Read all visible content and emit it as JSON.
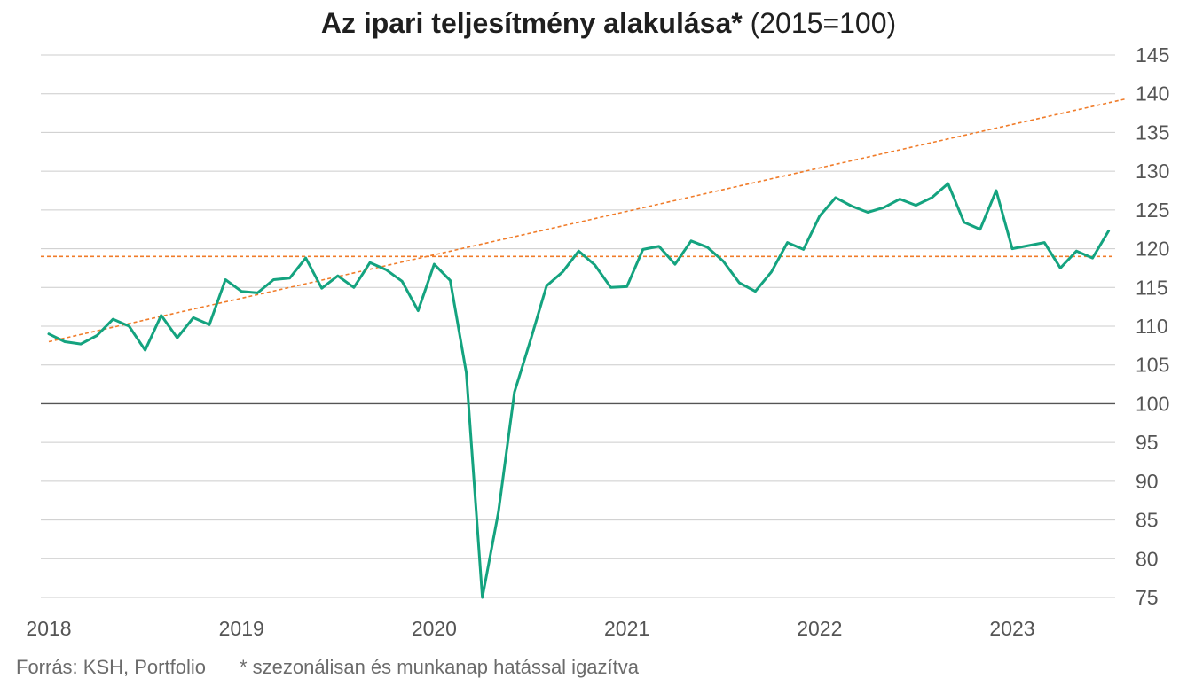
{
  "title": {
    "bold": "Az ipari teljesítmény alakulása*",
    "normal": "(2015=100)"
  },
  "footer": {
    "source": "Forrás: KSH, Portfolio",
    "note": "* szezonálisan és munkanap hatással igazítva"
  },
  "colors": {
    "series": "#14a37f",
    "reference_line": "#f07c2a",
    "grid": "#cccccc",
    "baseline": "#555555",
    "text": "#555555"
  },
  "chart_data": {
    "type": "line",
    "title": "Az ipari teljesítmény alakulása* (2015=100)",
    "ylim": [
      75,
      145
    ],
    "y_ticks": [
      145,
      140,
      135,
      130,
      125,
      120,
      115,
      110,
      105,
      100,
      95,
      90,
      85,
      80,
      75
    ],
    "y_axis_side": "right",
    "x_tick_labels": [
      "2018",
      "2019",
      "2020",
      "2021",
      "2022",
      "2023"
    ],
    "grid": true,
    "baseline_value": 100,
    "series": [
      {
        "x": [
          "2018-01",
          "2018-02",
          "2018-03",
          "2018-04",
          "2018-05",
          "2018-06",
          "2018-07",
          "2018-08",
          "2018-09",
          "2018-10",
          "2018-11",
          "2018-12",
          "2019-01",
          "2019-02",
          "2019-03",
          "2019-04",
          "2019-05",
          "2019-06",
          "2019-07",
          "2019-08",
          "2019-09",
          "2019-10",
          "2019-11",
          "2019-12",
          "2020-01",
          "2020-02",
          "2020-03",
          "2020-04",
          "2020-05",
          "2020-06",
          "2020-07",
          "2020-08",
          "2020-09",
          "2020-10",
          "2020-11",
          "2020-12",
          "2021-01",
          "2021-02",
          "2021-03",
          "2021-04",
          "2021-05",
          "2021-06",
          "2021-07",
          "2021-08",
          "2021-09",
          "2021-10",
          "2021-11",
          "2021-12",
          "2022-01",
          "2022-02",
          "2022-03",
          "2022-04",
          "2022-05",
          "2022-06",
          "2022-07",
          "2022-08",
          "2022-09",
          "2022-10",
          "2022-11",
          "2022-12",
          "2023-01",
          "2023-02",
          "2023-03",
          "2023-04",
          "2023-05",
          "2023-06",
          "2023-07"
        ],
        "values": [
          109.0,
          108.0,
          107.7,
          108.8,
          110.9,
          110.0,
          106.9,
          111.4,
          108.5,
          111.1,
          110.2,
          116.0,
          114.5,
          114.3,
          116.0,
          116.2,
          118.8,
          114.9,
          116.5,
          115.0,
          118.2,
          117.3,
          115.8,
          112.0,
          118.0,
          115.9,
          104.0,
          75.0,
          86.0,
          101.5,
          108.2,
          115.2,
          117.0,
          119.7,
          117.9,
          115.0,
          115.1,
          119.9,
          120.3,
          118.0,
          121.0,
          120.2,
          118.4,
          115.6,
          114.5,
          117.0,
          120.8,
          119.9,
          124.2,
          126.6,
          125.5,
          124.7,
          125.3,
          126.4,
          125.6,
          126.6,
          128.4,
          123.4,
          122.5,
          127.5,
          120.0,
          120.4,
          120.8,
          117.5,
          119.7,
          118.8,
          122.3
        ]
      }
    ],
    "reference_lines": [
      {
        "kind": "horizontal",
        "value": 119.0
      },
      {
        "kind": "trend",
        "from": {
          "x": "2018-01",
          "y": 108.0
        },
        "to": {
          "x": "2023-08",
          "y": 139.3
        }
      }
    ]
  }
}
